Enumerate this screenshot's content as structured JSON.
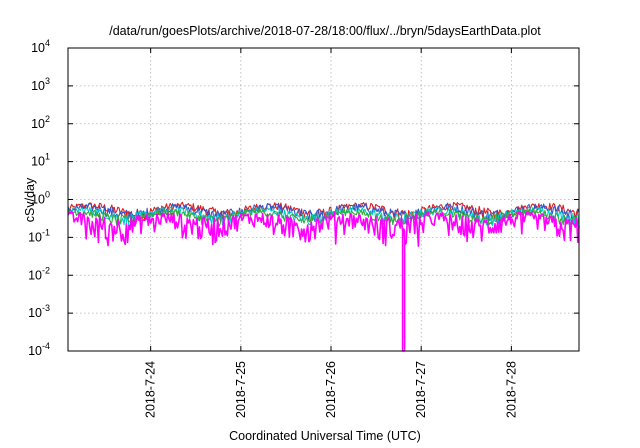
{
  "chart_data": {
    "type": "line",
    "title": "/data/run/goesPlots/archive/2018-07-28/18:00/flux/../bryn/5daysEarthData.plot",
    "xlabel": "Coordinated Universal Time (UTC)",
    "ylabel": "cSv/day",
    "yscale": "log",
    "ylim": [
      0.0001,
      10000
    ],
    "xlim": [
      "2018-07-23 02:00",
      "2018-07-28 18:00"
    ],
    "grid": true,
    "y_ticks": [
      {
        "value": 0.0001,
        "base": "10",
        "exp": "-4"
      },
      {
        "value": 0.001,
        "base": "10",
        "exp": "-3"
      },
      {
        "value": 0.01,
        "base": "10",
        "exp": "-2"
      },
      {
        "value": 0.1,
        "base": "10",
        "exp": "-1"
      },
      {
        "value": 1,
        "base": "10",
        "exp": "0"
      },
      {
        "value": 10,
        "base": "10",
        "exp": "1"
      },
      {
        "value": 100,
        "base": "10",
        "exp": "2"
      },
      {
        "value": 1000,
        "base": "10",
        "exp": "3"
      },
      {
        "value": 10000,
        "base": "10",
        "exp": "4"
      }
    ],
    "x_ticks": [
      "2018-7-24",
      "2018-7-25",
      "2018-7-26",
      "2018-7-27",
      "2018-7-28"
    ],
    "series": [
      {
        "color": "#e41a1c",
        "baseline": 0.55,
        "amplitude": 0.16
      },
      {
        "color": "#3355cc",
        "baseline": 0.5,
        "amplitude": 0.16
      },
      {
        "color": "#00cccc",
        "baseline": 0.42,
        "amplitude": 0.12
      },
      {
        "color": "#33aa33",
        "baseline": 0.38,
        "amplitude": 0.1
      },
      {
        "color": "#ff00ff",
        "baseline": 0.26,
        "amplitude": 0.14,
        "dropout": {
          "x": "2018-07-26 19:00",
          "y": 0.0001
        }
      }
    ]
  }
}
